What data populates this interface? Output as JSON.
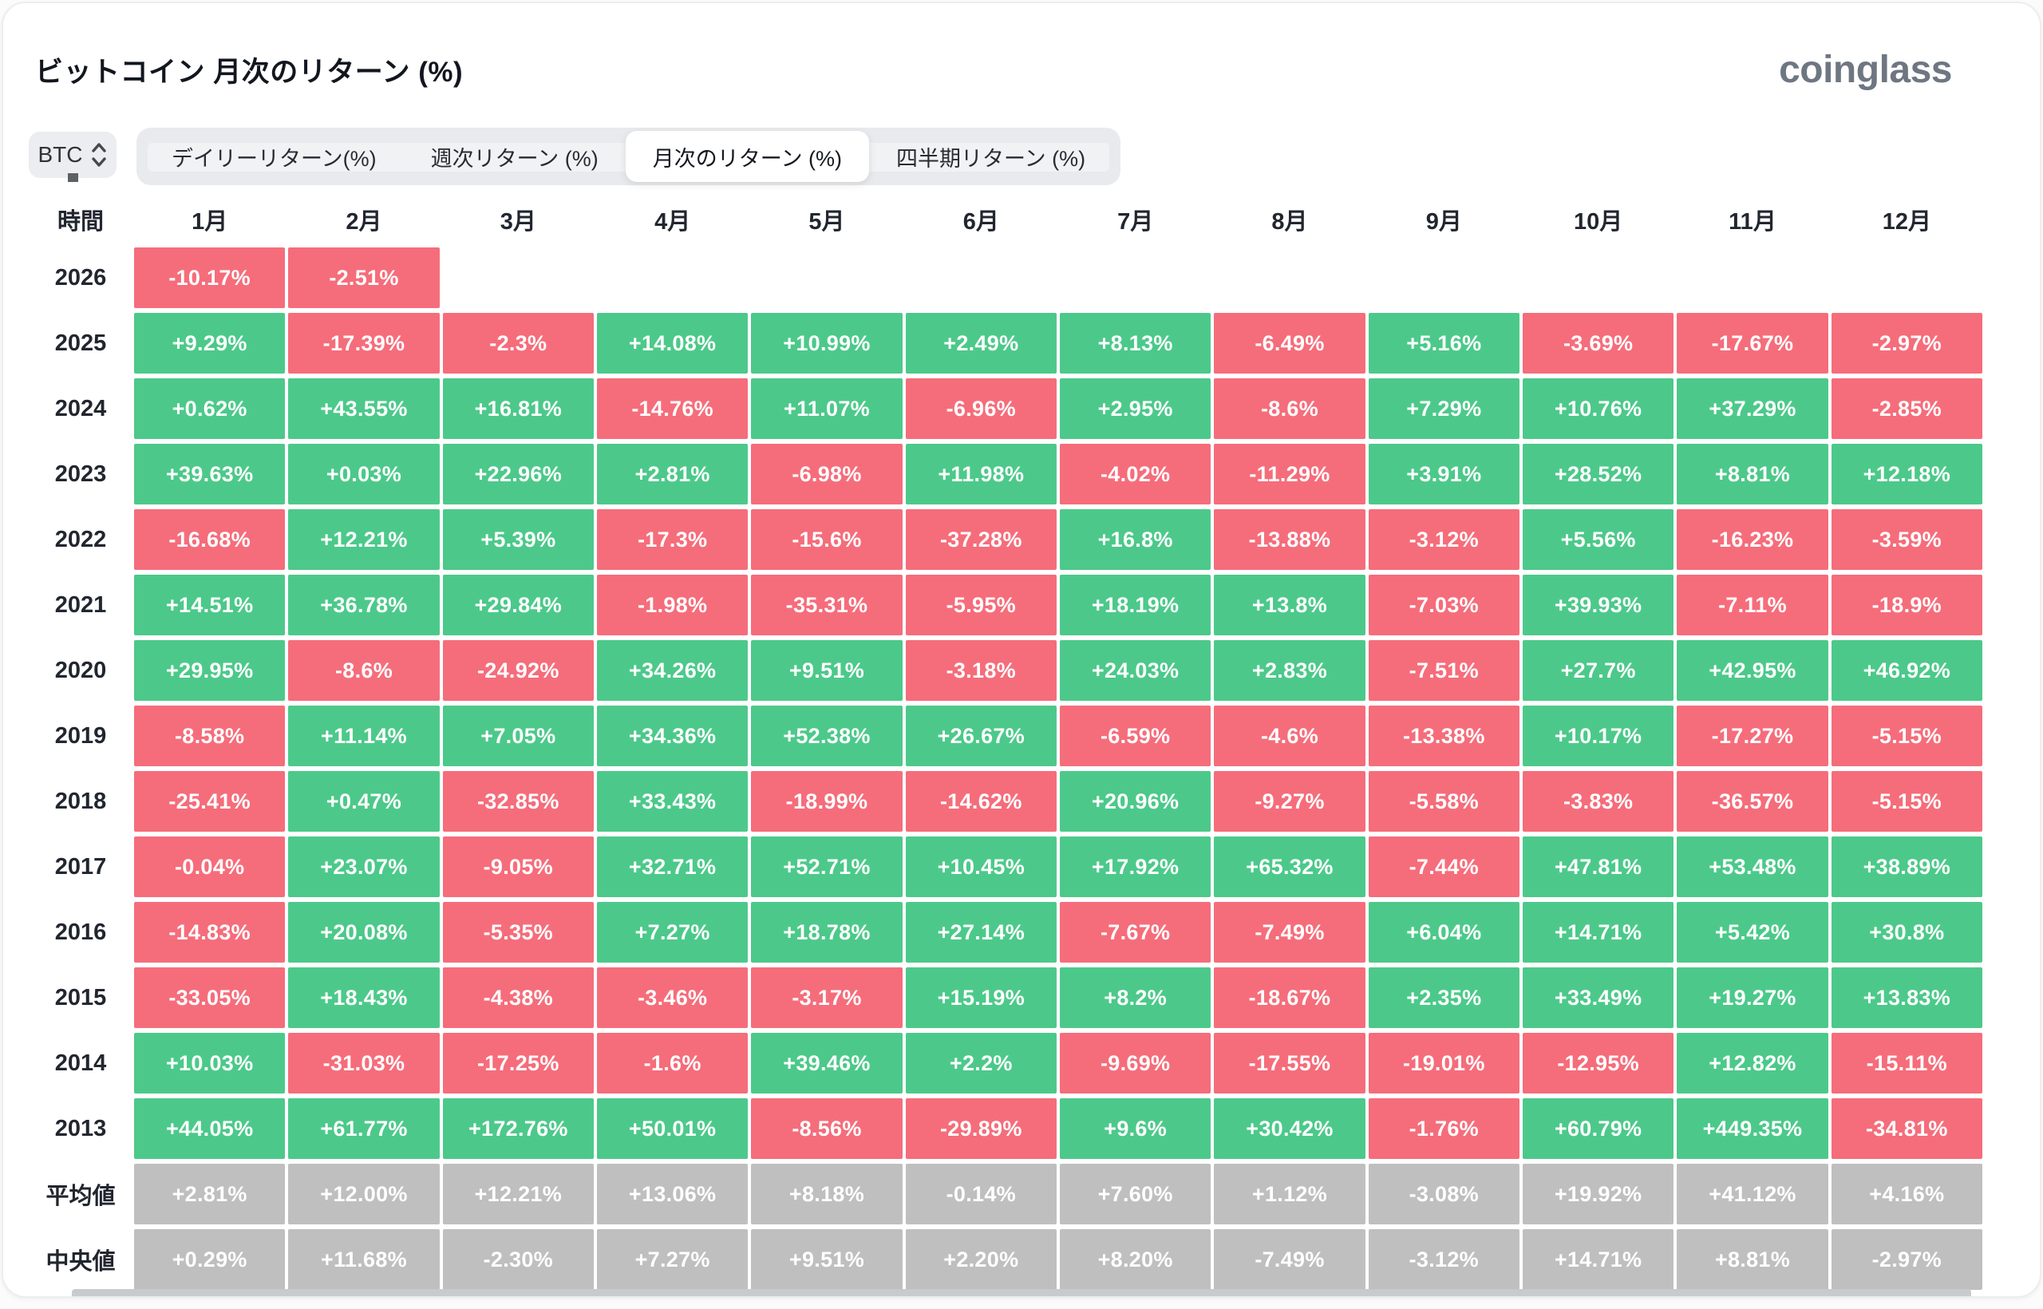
{
  "header": {
    "title": "ビットコイン 月次のリターン (%)",
    "logo": "coinglass"
  },
  "controls": {
    "symbol": {
      "value": "BTC"
    },
    "tabs": [
      {
        "label": "デイリーリターン(%)",
        "active": false
      },
      {
        "label": "週次リターン (%)",
        "active": false
      },
      {
        "label": "月次のリターン (%)",
        "active": true
      },
      {
        "label": "四半期リターン (%)",
        "active": false
      }
    ]
  },
  "colors": {
    "positive": "#4cc98a",
    "negative": "#f56d7b",
    "neutral": "#bfbfbf"
  },
  "table": {
    "time_header": "時間",
    "months": [
      "1月",
      "2月",
      "3月",
      "4月",
      "5月",
      "6月",
      "7月",
      "8月",
      "9月",
      "10月",
      "11月",
      "12月"
    ],
    "rows": [
      {
        "label": "2026",
        "type": "year",
        "values": [
          "-10.17%",
          "-2.51%",
          null,
          null,
          null,
          null,
          null,
          null,
          null,
          null,
          null,
          null
        ]
      },
      {
        "label": "2025",
        "type": "year",
        "values": [
          "+9.29%",
          "-17.39%",
          "-2.3%",
          "+14.08%",
          "+10.99%",
          "+2.49%",
          "+8.13%",
          "-6.49%",
          "+5.16%",
          "-3.69%",
          "-17.67%",
          "-2.97%"
        ]
      },
      {
        "label": "2024",
        "type": "year",
        "values": [
          "+0.62%",
          "+43.55%",
          "+16.81%",
          "-14.76%",
          "+11.07%",
          "-6.96%",
          "+2.95%",
          "-8.6%",
          "+7.29%",
          "+10.76%",
          "+37.29%",
          "-2.85%"
        ]
      },
      {
        "label": "2023",
        "type": "year",
        "values": [
          "+39.63%",
          "+0.03%",
          "+22.96%",
          "+2.81%",
          "-6.98%",
          "+11.98%",
          "-4.02%",
          "-11.29%",
          "+3.91%",
          "+28.52%",
          "+8.81%",
          "+12.18%"
        ]
      },
      {
        "label": "2022",
        "type": "year",
        "values": [
          "-16.68%",
          "+12.21%",
          "+5.39%",
          "-17.3%",
          "-15.6%",
          "-37.28%",
          "+16.8%",
          "-13.88%",
          "-3.12%",
          "+5.56%",
          "-16.23%",
          "-3.59%"
        ]
      },
      {
        "label": "2021",
        "type": "year",
        "values": [
          "+14.51%",
          "+36.78%",
          "+29.84%",
          "-1.98%",
          "-35.31%",
          "-5.95%",
          "+18.19%",
          "+13.8%",
          "-7.03%",
          "+39.93%",
          "-7.11%",
          "-18.9%"
        ]
      },
      {
        "label": "2020",
        "type": "year",
        "values": [
          "+29.95%",
          "-8.6%",
          "-24.92%",
          "+34.26%",
          "+9.51%",
          "-3.18%",
          "+24.03%",
          "+2.83%",
          "-7.51%",
          "+27.7%",
          "+42.95%",
          "+46.92%"
        ]
      },
      {
        "label": "2019",
        "type": "year",
        "values": [
          "-8.58%",
          "+11.14%",
          "+7.05%",
          "+34.36%",
          "+52.38%",
          "+26.67%",
          "-6.59%",
          "-4.6%",
          "-13.38%",
          "+10.17%",
          "-17.27%",
          "-5.15%"
        ]
      },
      {
        "label": "2018",
        "type": "year",
        "values": [
          "-25.41%",
          "+0.47%",
          "-32.85%",
          "+33.43%",
          "-18.99%",
          "-14.62%",
          "+20.96%",
          "-9.27%",
          "-5.58%",
          "-3.83%",
          "-36.57%",
          "-5.15%"
        ]
      },
      {
        "label": "2017",
        "type": "year",
        "values": [
          "-0.04%",
          "+23.07%",
          "-9.05%",
          "+32.71%",
          "+52.71%",
          "+10.45%",
          "+17.92%",
          "+65.32%",
          "-7.44%",
          "+47.81%",
          "+53.48%",
          "+38.89%"
        ]
      },
      {
        "label": "2016",
        "type": "year",
        "values": [
          "-14.83%",
          "+20.08%",
          "-5.35%",
          "+7.27%",
          "+18.78%",
          "+27.14%",
          "-7.67%",
          "-7.49%",
          "+6.04%",
          "+14.71%",
          "+5.42%",
          "+30.8%"
        ]
      },
      {
        "label": "2015",
        "type": "year",
        "values": [
          "-33.05%",
          "+18.43%",
          "-4.38%",
          "-3.46%",
          "-3.17%",
          "+15.19%",
          "+8.2%",
          "-18.67%",
          "+2.35%",
          "+33.49%",
          "+19.27%",
          "+13.83%"
        ]
      },
      {
        "label": "2014",
        "type": "year",
        "values": [
          "+10.03%",
          "-31.03%",
          "-17.25%",
          "-1.6%",
          "+39.46%",
          "+2.2%",
          "-9.69%",
          "-17.55%",
          "-19.01%",
          "-12.95%",
          "+12.82%",
          "-15.11%"
        ]
      },
      {
        "label": "2013",
        "type": "year",
        "values": [
          "+44.05%",
          "+61.77%",
          "+172.76%",
          "+50.01%",
          "-8.56%",
          "-29.89%",
          "+9.6%",
          "+30.42%",
          "-1.76%",
          "+60.79%",
          "+449.35%",
          "-34.81%"
        ]
      },
      {
        "label": "平均値",
        "type": "stat",
        "values": [
          "+2.81%",
          "+12.00%",
          "+12.21%",
          "+13.06%",
          "+8.18%",
          "-0.14%",
          "+7.60%",
          "+1.12%",
          "-3.08%",
          "+19.92%",
          "+41.12%",
          "+4.16%"
        ]
      },
      {
        "label": "中央値",
        "type": "stat",
        "values": [
          "+0.29%",
          "+11.68%",
          "-2.30%",
          "+7.27%",
          "+9.51%",
          "+2.20%",
          "+8.20%",
          "-7.49%",
          "-3.12%",
          "+14.71%",
          "+8.81%",
          "-2.97%"
        ]
      }
    ]
  }
}
